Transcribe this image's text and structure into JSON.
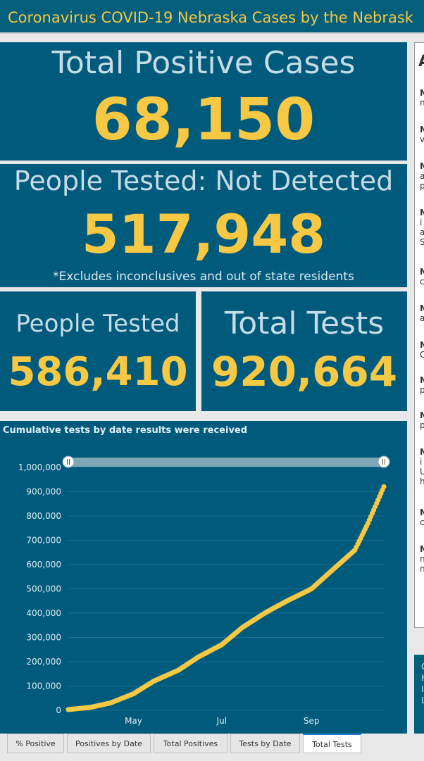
{
  "header": {
    "title": "Coronavirus COVID-19 Nebraska Cases by the Nebrask"
  },
  "stats": {
    "total_positive_label": "Total Positive Cases",
    "total_positive_value": "68,150",
    "not_detected_label": "People Tested: Not Detected",
    "not_detected_value": "517,948",
    "not_detected_note": "*Excludes inconclusives and out of state residents",
    "people_tested_label": "People Tested",
    "people_tested_value": "586,410",
    "total_tests_label": "Total Tests",
    "total_tests_value": "920,664"
  },
  "tabs": [
    {
      "label": "% Positive"
    },
    {
      "label": "Positives by Date"
    },
    {
      "label": "Total Positives"
    },
    {
      "label": "Tests by Date"
    },
    {
      "label": "Total Tests",
      "active": true
    }
  ],
  "colors": {
    "panel": "#005a7c",
    "accent": "#f7c843",
    "header": "#045f7d"
  },
  "chart_data": {
    "type": "scatter",
    "title": "Cumulative tests by date results were received",
    "y_ticks": [
      "1,000,000",
      "900,000",
      "800,000",
      "700,000",
      "600,000",
      "500,000",
      "400,000",
      "300,000",
      "200,000",
      "100,000",
      "0"
    ],
    "x_ticks": [
      "May",
      "Jul",
      "Sep"
    ],
    "ylim": [
      0,
      1000000
    ],
    "x_range": [
      "2020-03-17",
      "2020-10-21"
    ],
    "x": [
      "2020-03-17",
      "2020-04-01",
      "2020-04-15",
      "2020-05-01",
      "2020-05-15",
      "2020-06-01",
      "2020-06-15",
      "2020-07-01",
      "2020-07-15",
      "2020-08-01",
      "2020-08-15",
      "2020-09-01",
      "2020-09-15",
      "2020-10-01",
      "2020-10-10",
      "2020-10-21"
    ],
    "y": [
      3000,
      12000,
      30000,
      68000,
      120000,
      165000,
      220000,
      270000,
      340000,
      405000,
      450000,
      500000,
      575000,
      660000,
      770000,
      920664
    ],
    "grid": true,
    "range_slider": true
  }
}
